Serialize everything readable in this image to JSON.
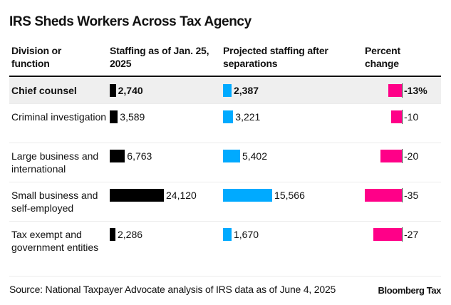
{
  "title": "IRS Sheds Workers Across Tax Agency",
  "headers": {
    "division": "Division or function",
    "staffing_jan": "Staffing as of Jan. 25, 2025",
    "projected": "Projected staffing after separations",
    "percent": "Percent change"
  },
  "colors": {
    "staffing_jan": "#000000",
    "projected": "#00aaff",
    "percent": "#ff0088",
    "highlight_row": "#efefef"
  },
  "footer": {
    "source": "Source: National Taxpayer Advocate analysis of IRS data as of June 4, 2025",
    "brand": "Bloomberg Tax"
  },
  "chart_data": {
    "type": "table",
    "title": "IRS Sheds Workers Across Tax Agency",
    "columns": [
      "Division or function",
      "Staffing as of Jan. 25, 2025",
      "Projected staffing after separations",
      "Percent change"
    ],
    "rows": [
      {
        "division": "Chief counsel",
        "staffing_jan": 2740,
        "staffing_jan_label": "2,740",
        "projected": 2387,
        "projected_label": "2,387",
        "percent_change": -13,
        "percent_label": "-13%",
        "highlighted": true
      },
      {
        "division": "Criminal investigation",
        "staffing_jan": 3589,
        "staffing_jan_label": "3,589",
        "projected": 3221,
        "projected_label": "3,221",
        "percent_change": -10,
        "percent_label": "-10",
        "highlighted": false
      },
      {
        "division": "Large business and international",
        "staffing_jan": 6763,
        "staffing_jan_label": "6,763",
        "projected": 5402,
        "projected_label": "5,402",
        "percent_change": -20,
        "percent_label": "-20",
        "highlighted": false
      },
      {
        "division": "Small business and self-employed",
        "staffing_jan": 24120,
        "staffing_jan_label": "24,120",
        "projected": 15566,
        "projected_label": "15,566",
        "percent_change": -35,
        "percent_label": "-35",
        "highlighted": false
      },
      {
        "division": "Tax exempt and government entities",
        "staffing_jan": 2286,
        "staffing_jan_label": "2,286",
        "projected": 1670,
        "projected_label": "1,670",
        "percent_change": -27,
        "percent_label": "-27",
        "highlighted": false
      }
    ],
    "staffing_scale_max": 24120,
    "percent_scale_max": 35
  }
}
